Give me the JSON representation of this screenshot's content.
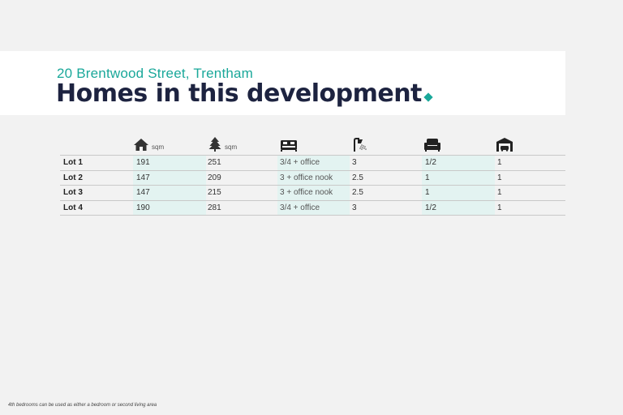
{
  "header": {
    "subtitle": "20 Brentwood Street, Trentham",
    "title": "Homes in this development"
  },
  "table": {
    "columns": [
      {
        "icon": "house-icon",
        "unit": "sqm"
      },
      {
        "icon": "tree-icon",
        "unit": "sqm"
      },
      {
        "icon": "bed-icon",
        "unit": ""
      },
      {
        "icon": "shower-icon",
        "unit": ""
      },
      {
        "icon": "armchair-icon",
        "unit": ""
      },
      {
        "icon": "garage-icon",
        "unit": ""
      }
    ],
    "rows": [
      {
        "lot": "Lot 1",
        "house": "191",
        "land": "251",
        "bedrooms": "3/4 + office",
        "bathrooms": "3",
        "living": "1/2",
        "garage": "1"
      },
      {
        "lot": "Lot 2",
        "house": "147",
        "land": "209",
        "bedrooms": "3 + office nook",
        "bathrooms": "2.5",
        "living": "1",
        "garage": "1"
      },
      {
        "lot": "Lot 3",
        "house": "147",
        "land": "215",
        "bedrooms": "3 + office nook",
        "bathrooms": "2.5",
        "living": "1",
        "garage": "1"
      },
      {
        "lot": "Lot 4",
        "house": "190",
        "land": "281",
        "bedrooms": "3/4 + office",
        "bathrooms": "3",
        "living": "1/2",
        "garage": "1"
      }
    ]
  },
  "footnote": "4th bedrooms can be used as either a bedroom or second living area",
  "colors": {
    "accent": "#1aa89a",
    "title": "#1d2340",
    "shade": "#e3f3f1"
  }
}
